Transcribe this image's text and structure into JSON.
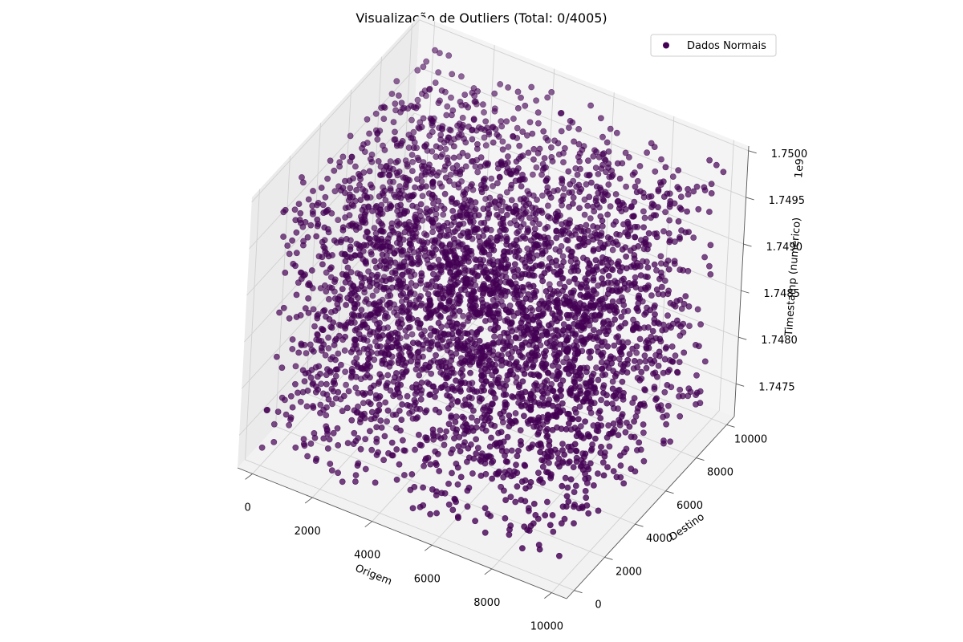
{
  "chart_data": {
    "type": "scatter",
    "projection": "3d",
    "title": "Visualização de Outliers (Total: 0/4005)",
    "xlabel": "Origem",
    "ylabel": "Destino",
    "zlabel": "Timestamp (numérico)",
    "z_offset_label": "1e9",
    "xlim": [
      -500,
      10500
    ],
    "ylim": [
      -500,
      10500
    ],
    "zlim": [
      1.74715,
      1.75005
    ],
    "x_ticks": [
      0,
      2000,
      4000,
      6000,
      8000,
      10000
    ],
    "x_tick_labels": [
      "0",
      "2000",
      "4000",
      "6000",
      "8000",
      "10000"
    ],
    "y_ticks": [
      0,
      2000,
      4000,
      6000,
      8000,
      10000
    ],
    "y_tick_labels": [
      "0",
      "2000",
      "4000",
      "6000",
      "8000",
      "10000"
    ],
    "z_ticks": [
      1.7475,
      1.748,
      1.7485,
      1.749,
      1.7495,
      1.75
    ],
    "z_tick_labels": [
      "1.7475",
      "1.7480",
      "1.7485",
      "1.7490",
      "1.7495",
      "1.7500"
    ],
    "grid": true,
    "legend": {
      "position": "top-right",
      "entries": [
        "Dados Normais"
      ]
    },
    "series": [
      {
        "name": "Dados Normais",
        "color": "#440154",
        "count": 4005,
        "x_range": [
          0,
          10000
        ],
        "y_range": [
          0,
          10000
        ],
        "z_range": [
          1.7473,
          1.75
        ],
        "distribution": "uniform random in x, y and z"
      }
    ]
  }
}
